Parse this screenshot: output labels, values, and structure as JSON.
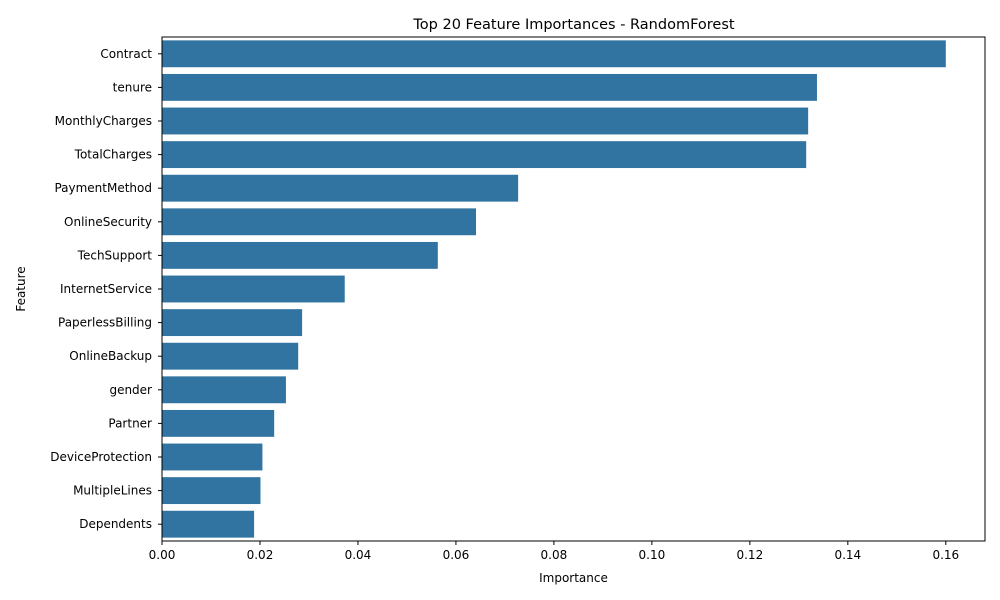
{
  "chart_data": {
    "type": "bar",
    "orientation": "horizontal",
    "title": "Top 20 Feature Importances - RandomForest",
    "xlabel": "Importance",
    "ylabel": "Feature",
    "xlim": [
      0,
      0.168
    ],
    "xticks": [
      0.0,
      0.02,
      0.04,
      0.06,
      0.08,
      0.1,
      0.12,
      0.14,
      0.16
    ],
    "xtick_labels": [
      "0.00",
      "0.02",
      "0.04",
      "0.06",
      "0.08",
      "0.10",
      "0.12",
      "0.14",
      "0.16"
    ],
    "grid": false,
    "bar_color": "#3274a1",
    "categories": [
      "Contract",
      "tenure",
      "MonthlyCharges",
      "TotalCharges",
      "PaymentMethod",
      "OnlineSecurity",
      "TechSupport",
      "InternetService",
      "PaperlessBilling",
      "OnlineBackup",
      "gender",
      "Partner",
      "DeviceProtection",
      "MultipleLines",
      "Dependents"
    ],
    "values": [
      0.16,
      0.1337,
      0.1319,
      0.1315,
      0.0727,
      0.0641,
      0.0563,
      0.0373,
      0.0286,
      0.0278,
      0.0253,
      0.0229,
      0.0205,
      0.0201,
      0.0188
    ]
  }
}
